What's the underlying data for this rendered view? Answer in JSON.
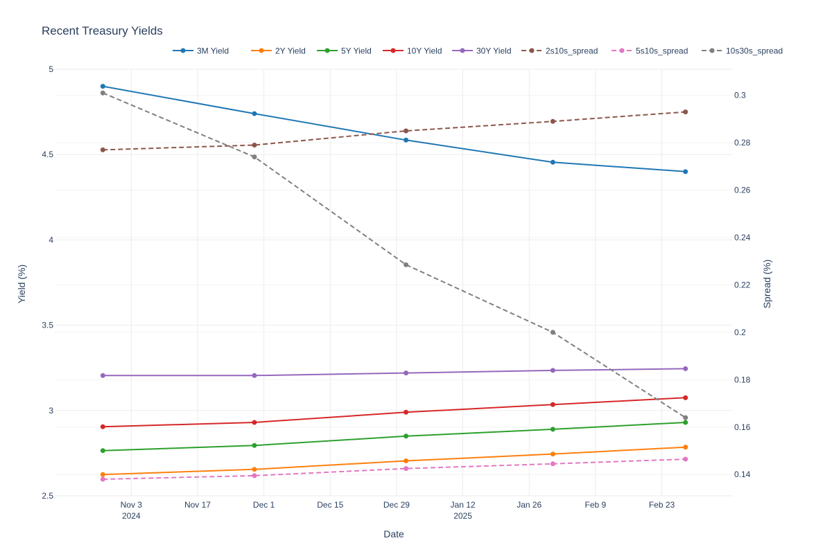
{
  "chart_data": {
    "type": "line",
    "title": "Recent Treasury Yields",
    "xlabel": "Date",
    "ylabel": "Yield (%)",
    "y2label": "Spread (%)",
    "x": [
      "2024-10-28",
      "2024-11-29",
      "2024-12-31",
      "2025-01-31",
      "2025-02-28"
    ],
    "x_range": [
      "2024-10-18",
      "2025-03-10"
    ],
    "x_ticks": [
      {
        "date": "2024-11-03",
        "label": "Nov 3",
        "sublabel": "2024"
      },
      {
        "date": "2024-11-17",
        "label": "Nov 17",
        "sublabel": ""
      },
      {
        "date": "2024-12-01",
        "label": "Dec 1",
        "sublabel": ""
      },
      {
        "date": "2024-12-15",
        "label": "Dec 15",
        "sublabel": ""
      },
      {
        "date": "2024-12-29",
        "label": "Dec 29",
        "sublabel": ""
      },
      {
        "date": "2025-01-12",
        "label": "Jan 12",
        "sublabel": "2025"
      },
      {
        "date": "2025-01-26",
        "label": "Jan 26",
        "sublabel": ""
      },
      {
        "date": "2025-02-09",
        "label": "Feb 9",
        "sublabel": ""
      },
      {
        "date": "2025-02-23",
        "label": "Feb 23",
        "sublabel": ""
      }
    ],
    "ylim": [
      2.5,
      5.0
    ],
    "y_ticks": [
      "2.5",
      "3",
      "3.5",
      "4",
      "4.5",
      "5"
    ],
    "y2lim": [
      0.131,
      0.311
    ],
    "y2_ticks": [
      "0.14",
      "0.16",
      "0.18",
      "0.2",
      "0.22",
      "0.24",
      "0.26",
      "0.28",
      "0.3"
    ],
    "grid": true,
    "legend_position": "top",
    "series": [
      {
        "name": "3M Yield",
        "axis": "y",
        "dash": false,
        "color": "#1f77b4",
        "values": [
          4.9,
          4.74,
          4.585,
          4.455,
          4.4
        ]
      },
      {
        "name": "2Y Yield",
        "axis": "y",
        "dash": false,
        "color": "#ff7f0e",
        "values": [
          2.625,
          2.655,
          2.705,
          2.745,
          2.785
        ]
      },
      {
        "name": "5Y Yield",
        "axis": "y",
        "dash": false,
        "color": "#2ca02c",
        "values": [
          2.765,
          2.795,
          2.85,
          2.89,
          2.93
        ]
      },
      {
        "name": "10Y Yield",
        "axis": "y",
        "dash": false,
        "color": "#d62728",
        "values": [
          2.905,
          2.93,
          2.99,
          3.035,
          3.075
        ]
      },
      {
        "name": "30Y Yield",
        "axis": "y",
        "dash": false,
        "color": "#9467bd",
        "values": [
          3.205,
          3.205,
          3.22,
          3.235,
          3.245
        ]
      },
      {
        "name": "2s10s_spread",
        "axis": "y2",
        "dash": true,
        "color": "#8c564b",
        "values": [
          0.277,
          0.279,
          0.285,
          0.289,
          0.293
        ]
      },
      {
        "name": "5s10s_spread",
        "axis": "y2",
        "dash": true,
        "color": "#e377c2",
        "values": [
          0.138,
          0.1395,
          0.1425,
          0.1445,
          0.1465
        ]
      },
      {
        "name": "10s30s_spread",
        "axis": "y2",
        "dash": true,
        "color": "#7f7f7f",
        "values": [
          0.301,
          0.274,
          0.2285,
          0.2,
          0.164
        ]
      }
    ]
  }
}
